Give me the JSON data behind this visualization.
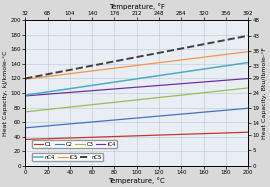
{
  "title_bottom": "Temperature, °C",
  "title_top": "Temperature, °F",
  "ylabel_left": "Heat Capacity, kJ/kmole-°C",
  "ylabel_right": "Heat Capacity, Btu/lbmole-°F",
  "xlim_c": [
    0,
    200
  ],
  "ylim_left": [
    0,
    200
  ],
  "ylim_right": [
    0,
    48
  ],
  "xticks_c": [
    0,
    20,
    40,
    60,
    80,
    100,
    120,
    140,
    160,
    180,
    200
  ],
  "xticks_f": [
    32,
    68,
    104,
    140,
    176,
    212,
    248,
    284,
    320,
    356,
    392
  ],
  "yticks_left": [
    0,
    20,
    40,
    60,
    80,
    100,
    120,
    140,
    160,
    180,
    200
  ],
  "yticks_right": [
    0,
    5,
    10,
    14,
    19,
    24,
    29,
    33,
    38,
    43,
    48
  ],
  "series": {
    "C1": {
      "color": "#c0392b",
      "lw": 0.9,
      "ls": "-",
      "y0": 36,
      "y1": 46
    },
    "C2": {
      "color": "#4472c4",
      "lw": 0.9,
      "ls": "-",
      "y0": 52,
      "y1": 79
    },
    "C3": {
      "color": "#9bbb59",
      "lw": 0.9,
      "ls": "-",
      "y0": 74,
      "y1": 107
    },
    "iC4": {
      "color": "#7030a0",
      "lw": 0.9,
      "ls": "-",
      "y0": 96,
      "y1": 120
    },
    "nC4": {
      "color": "#4bacc6",
      "lw": 1.1,
      "ls": "-",
      "y0": 97,
      "y1": 142
    },
    "iC5": {
      "color": "#f79646",
      "lw": 0.9,
      "ls": "-",
      "y0": 119,
      "y1": 157
    },
    "nC5": {
      "color": "#404040",
      "lw": 1.4,
      "ls": "--",
      "y0": 120,
      "y1": 179
    }
  },
  "legend_row1": [
    "C1",
    "C2",
    "C3",
    "iC4"
  ],
  "legend_row2": [
    "nC4",
    "iC5",
    "nC5"
  ],
  "fig_facecolor": "#d9d9d9",
  "ax_facecolor": "#e8eef4",
  "grid_color": "#b8c8d8"
}
